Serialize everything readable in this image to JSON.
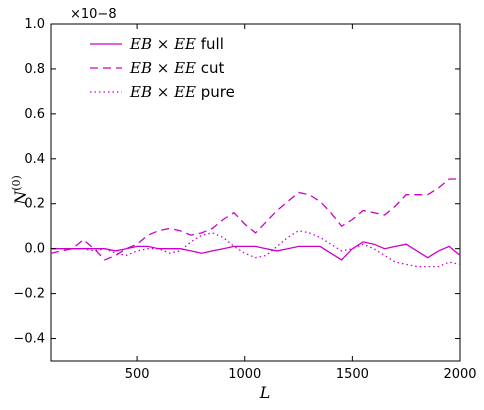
{
  "chart_data": {
    "type": "line",
    "xlabel": "L",
    "ylabel": "N^(0)",
    "xlim": [
      100,
      2000
    ],
    "ylim": [
      -0.5,
      1.0
    ],
    "xticks": [
      500,
      1000,
      1500,
      2000
    ],
    "xtick_labels": [
      "500",
      "1000",
      "1500",
      "2000"
    ],
    "yticks": [
      -0.4,
      -0.2,
      0.0,
      0.2,
      0.4,
      0.6,
      0.8,
      1.0
    ],
    "ytick_labels": [
      "−0.4",
      "−0.2",
      "0.0",
      "0.2",
      "0.4",
      "0.6",
      "0.8",
      "1.0"
    ],
    "y_multiplier": "×10−8",
    "grid": false,
    "legend_position": "top-left",
    "color": "#cc00cc",
    "series": [
      {
        "name": "EB × EE full",
        "style": "solid",
        "x": [
          100,
          150,
          200,
          250,
          300,
          350,
          400,
          450,
          500,
          550,
          600,
          650,
          700,
          750,
          800,
          850,
          900,
          950,
          1000,
          1050,
          1100,
          1150,
          1200,
          1250,
          1300,
          1350,
          1400,
          1450,
          1500,
          1550,
          1600,
          1650,
          1700,
          1750,
          1800,
          1850,
          1900,
          1950,
          2000
        ],
        "y": [
          0.0,
          0.0,
          0.0,
          0.0,
          0.0,
          0.0,
          -0.01,
          0.0,
          0.01,
          0.01,
          0.0,
          0.0,
          0.0,
          -0.01,
          -0.02,
          -0.01,
          0.0,
          0.01,
          0.01,
          0.01,
          0.0,
          -0.01,
          0.0,
          0.01,
          0.01,
          0.01,
          -0.02,
          -0.05,
          0.0,
          0.03,
          0.02,
          0.0,
          0.01,
          0.02,
          -0.01,
          -0.04,
          -0.01,
          0.01,
          -0.03
        ]
      },
      {
        "name": "EB × EE cut",
        "style": "dashed",
        "x": [
          100,
          150,
          200,
          250,
          300,
          350,
          400,
          450,
          500,
          550,
          600,
          650,
          700,
          750,
          800,
          850,
          900,
          950,
          1000,
          1050,
          1100,
          1150,
          1200,
          1250,
          1300,
          1350,
          1400,
          1450,
          1500,
          1550,
          1600,
          1650,
          1700,
          1750,
          1800,
          1850,
          1900,
          1950,
          2000
        ],
        "y": [
          -0.02,
          -0.01,
          0.0,
          0.04,
          0.0,
          -0.05,
          -0.03,
          0.0,
          0.02,
          0.06,
          0.08,
          0.09,
          0.08,
          0.06,
          0.07,
          0.09,
          0.13,
          0.16,
          0.11,
          0.07,
          0.12,
          0.17,
          0.21,
          0.25,
          0.24,
          0.21,
          0.16,
          0.1,
          0.13,
          0.17,
          0.16,
          0.15,
          0.19,
          0.24,
          0.24,
          0.24,
          0.27,
          0.31,
          0.31
        ]
      },
      {
        "name": "EB × EE pure",
        "style": "dotted",
        "x": [
          100,
          150,
          200,
          250,
          300,
          350,
          400,
          450,
          500,
          550,
          600,
          650,
          700,
          750,
          800,
          850,
          900,
          950,
          1000,
          1050,
          1100,
          1150,
          1200,
          1250,
          1300,
          1350,
          1400,
          1450,
          1500,
          1550,
          1600,
          1650,
          1700,
          1750,
          1800,
          1850,
          1900,
          1950,
          2000
        ],
        "y": [
          0.0,
          0.0,
          0.0,
          0.0,
          -0.01,
          0.0,
          -0.02,
          -0.03,
          -0.01,
          0.0,
          0.0,
          -0.02,
          -0.01,
          0.03,
          0.06,
          0.07,
          0.05,
          0.01,
          -0.02,
          -0.04,
          -0.03,
          0.01,
          0.05,
          0.08,
          0.07,
          0.05,
          0.02,
          -0.01,
          0.0,
          0.02,
          0.0,
          -0.03,
          -0.06,
          -0.07,
          -0.08,
          -0.08,
          -0.08,
          -0.06,
          -0.07
        ]
      }
    ]
  },
  "legend": {
    "entries": [
      {
        "math": "EB × EE",
        "suffix": " full"
      },
      {
        "math": "EB × EE",
        "suffix": " cut"
      },
      {
        "math": "EB × EE",
        "suffix": " pure"
      }
    ]
  }
}
